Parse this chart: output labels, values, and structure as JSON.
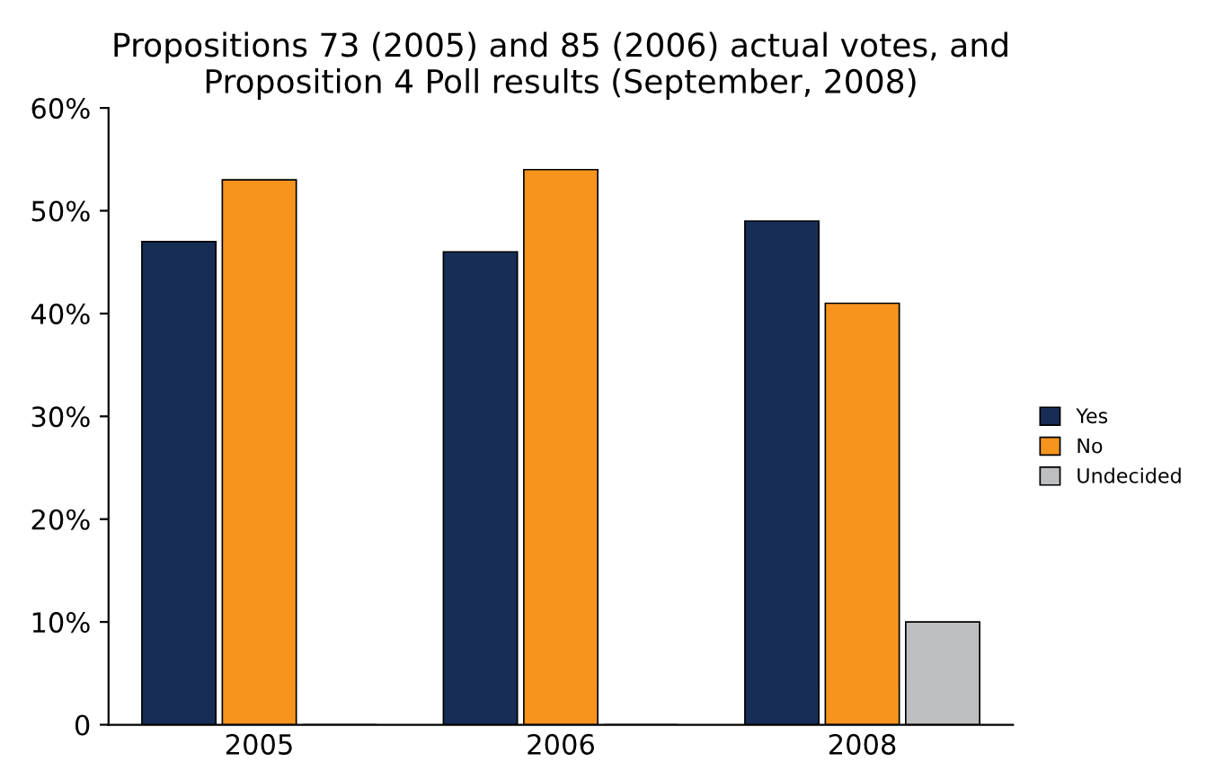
{
  "chart_data": {
    "type": "bar",
    "title": "Propositions 73 (2005) and 85 (2006) actual votes, and\nProposition 4 Poll results (September, 2008)",
    "categories": [
      "2005",
      "2006",
      "2008"
    ],
    "series": [
      {
        "name": "Yes",
        "color": "#172d55",
        "values": [
          47,
          46,
          49
        ]
      },
      {
        "name": "No",
        "color": "#f7941d",
        "values": [
          53,
          54,
          41
        ]
      },
      {
        "name": "Undecided",
        "color": "#bcbec0",
        "values": [
          0,
          0,
          10
        ]
      }
    ],
    "ylim": [
      0,
      60
    ],
    "yticks": [
      0,
      {
        "value": 10,
        "label": "10%"
      },
      {
        "value": 20,
        "label": "20%"
      },
      {
        "value": 30,
        "label": "30%"
      },
      {
        "value": 40,
        "label": "40%"
      },
      {
        "value": 50,
        "label": "50%"
      },
      {
        "value": 60,
        "label": "60%"
      }
    ],
    "grid": false,
    "legend": "right"
  }
}
